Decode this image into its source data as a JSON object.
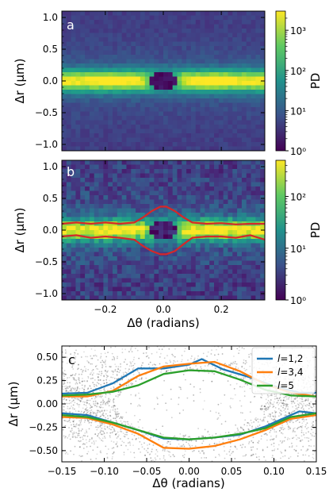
{
  "chart_data": [
    {
      "panel": "a",
      "type": "heatmap",
      "xlabel": "",
      "ylabel": "Δr (µm)",
      "xlim": [
        -0.35,
        0.35
      ],
      "ylim": [
        -1.1,
        1.1
      ],
      "yticks": [
        "1.0",
        "0.5",
        "0.0",
        "−0.5",
        "−1.0"
      ],
      "colorbar": {
        "label": "PD",
        "scale": "log",
        "range": [
          1,
          3000
        ],
        "ticks": [
          "10³",
          "10²",
          "10¹",
          "10⁰"
        ]
      },
      "description_values": {
        "max_density_band_dr": 0.0,
        "hole_center": [
          0.0,
          0.0
        ]
      }
    },
    {
      "panel": "b",
      "type": "heatmap",
      "xlabel": "Δθ (radians)",
      "ylabel": "Δr (µm)",
      "xlim": [
        -0.35,
        0.35
      ],
      "ylim": [
        -1.1,
        1.1
      ],
      "xticks": [
        "−0.2",
        "0.0",
        "0.2"
      ],
      "yticks": [
        "1.0",
        "0.5",
        "0.0",
        "−0.5",
        "−1.0"
      ],
      "colorbar": {
        "label": "PD",
        "scale": "log",
        "range": [
          1,
          500
        ],
        "ticks": [
          "10²",
          "10¹",
          "10⁰"
        ]
      },
      "contour_upper": {
        "x": [
          -0.35,
          -0.3,
          -0.25,
          -0.2,
          -0.15,
          -0.1,
          -0.07,
          -0.04,
          -0.01,
          0.01,
          0.04,
          0.07,
          0.1,
          0.15,
          0.2,
          0.25,
          0.3,
          0.35
        ],
        "y": [
          0.1,
          0.12,
          0.1,
          0.12,
          0.1,
          0.12,
          0.2,
          0.3,
          0.37,
          0.37,
          0.3,
          0.2,
          0.12,
          0.1,
          0.11,
          0.09,
          0.1,
          0.1
        ]
      },
      "contour_lower": {
        "x": [
          -0.35,
          -0.3,
          -0.25,
          -0.2,
          -0.15,
          -0.1,
          -0.07,
          -0.04,
          -0.01,
          0.01,
          0.04,
          0.07,
          0.1,
          0.15,
          0.2,
          0.25,
          0.3,
          0.35
        ],
        "y": [
          -0.1,
          -0.08,
          -0.12,
          -0.1,
          -0.12,
          -0.15,
          -0.25,
          -0.33,
          -0.38,
          -0.38,
          -0.33,
          -0.22,
          -0.12,
          -0.1,
          -0.1,
          -0.12,
          -0.08,
          -0.15
        ]
      },
      "line_color": "#d62728"
    },
    {
      "panel": "c",
      "type": "line",
      "xlabel": "Δθ (radians)",
      "ylabel": "Δr (µm)",
      "xlim": [
        -0.15,
        0.15
      ],
      "ylim": [
        -0.62,
        0.62
      ],
      "xticks": [
        "−0.15",
        "−0.10",
        "−0.05",
        "0.00",
        "0.05",
        "0.10",
        "0.15"
      ],
      "yticks": [
        "0.50",
        "0.25",
        "0.00",
        "−0.25",
        "−0.50"
      ],
      "legend_position": "top-right",
      "series": [
        {
          "name": "l=1,2",
          "color": "#1f77b4",
          "upper": {
            "x": [
              -0.15,
              -0.12,
              -0.09,
              -0.06,
              -0.03,
              0.0,
              0.015,
              0.04,
              0.07,
              0.1,
              0.13,
              0.15
            ],
            "y": [
              0.11,
              0.12,
              0.22,
              0.38,
              0.38,
              0.42,
              0.48,
              0.37,
              0.29,
              0.19,
              0.12,
              0.12
            ]
          },
          "lower": {
            "x": [
              -0.15,
              -0.12,
              -0.09,
              -0.06,
              -0.03,
              0.0,
              0.03,
              0.06,
              0.09,
              0.12,
              0.13,
              0.15
            ],
            "y": [
              -0.1,
              -0.12,
              -0.2,
              -0.28,
              -0.37,
              -0.38,
              -0.36,
              -0.33,
              -0.24,
              -0.12,
              -0.08,
              -0.1
            ]
          }
        },
        {
          "name": "l=3,4",
          "color": "#ff7f0e",
          "upper": {
            "x": [
              -0.15,
              -0.12,
              -0.09,
              -0.06,
              -0.03,
              0.0,
              0.03,
              0.06,
              0.09,
              0.12,
              0.15
            ],
            "y": [
              0.08,
              0.08,
              0.14,
              0.3,
              0.4,
              0.43,
              0.45,
              0.35,
              0.21,
              0.12,
              0.08
            ]
          },
          "lower": {
            "x": [
              -0.15,
              -0.12,
              -0.09,
              -0.06,
              -0.03,
              0.0,
              0.03,
              0.06,
              0.09,
              0.12,
              0.15
            ],
            "y": [
              -0.14,
              -0.15,
              -0.22,
              -0.32,
              -0.47,
              -0.48,
              -0.45,
              -0.38,
              -0.28,
              -0.16,
              -0.12
            ]
          }
        },
        {
          "name": "l=5",
          "color": "#2ca02c",
          "upper": {
            "x": [
              -0.15,
              -0.12,
              -0.09,
              -0.06,
              -0.03,
              0.0,
              0.03,
              0.06,
              0.09,
              0.12,
              0.15
            ],
            "y": [
              0.09,
              0.1,
              0.13,
              0.2,
              0.32,
              0.36,
              0.35,
              0.26,
              0.15,
              0.09,
              0.08
            ]
          },
          "lower": {
            "x": [
              -0.15,
              -0.12,
              -0.09,
              -0.06,
              -0.03,
              0.0,
              0.03,
              0.06,
              0.09,
              0.12,
              0.15
            ],
            "y": [
              -0.12,
              -0.14,
              -0.2,
              -0.28,
              -0.36,
              -0.38,
              -0.36,
              -0.32,
              -0.26,
              -0.14,
              -0.1
            ]
          }
        }
      ]
    }
  ],
  "labels": {
    "panel_a": "a",
    "panel_b": "b",
    "panel_c": "c",
    "ylabel": "Δr (µm)",
    "xlabel": "Δθ (radians)",
    "colorbar_label": "PD",
    "legend_prefix": "l",
    "legend_1": "=1,2",
    "legend_2": "=3,4",
    "legend_3": "=5"
  }
}
